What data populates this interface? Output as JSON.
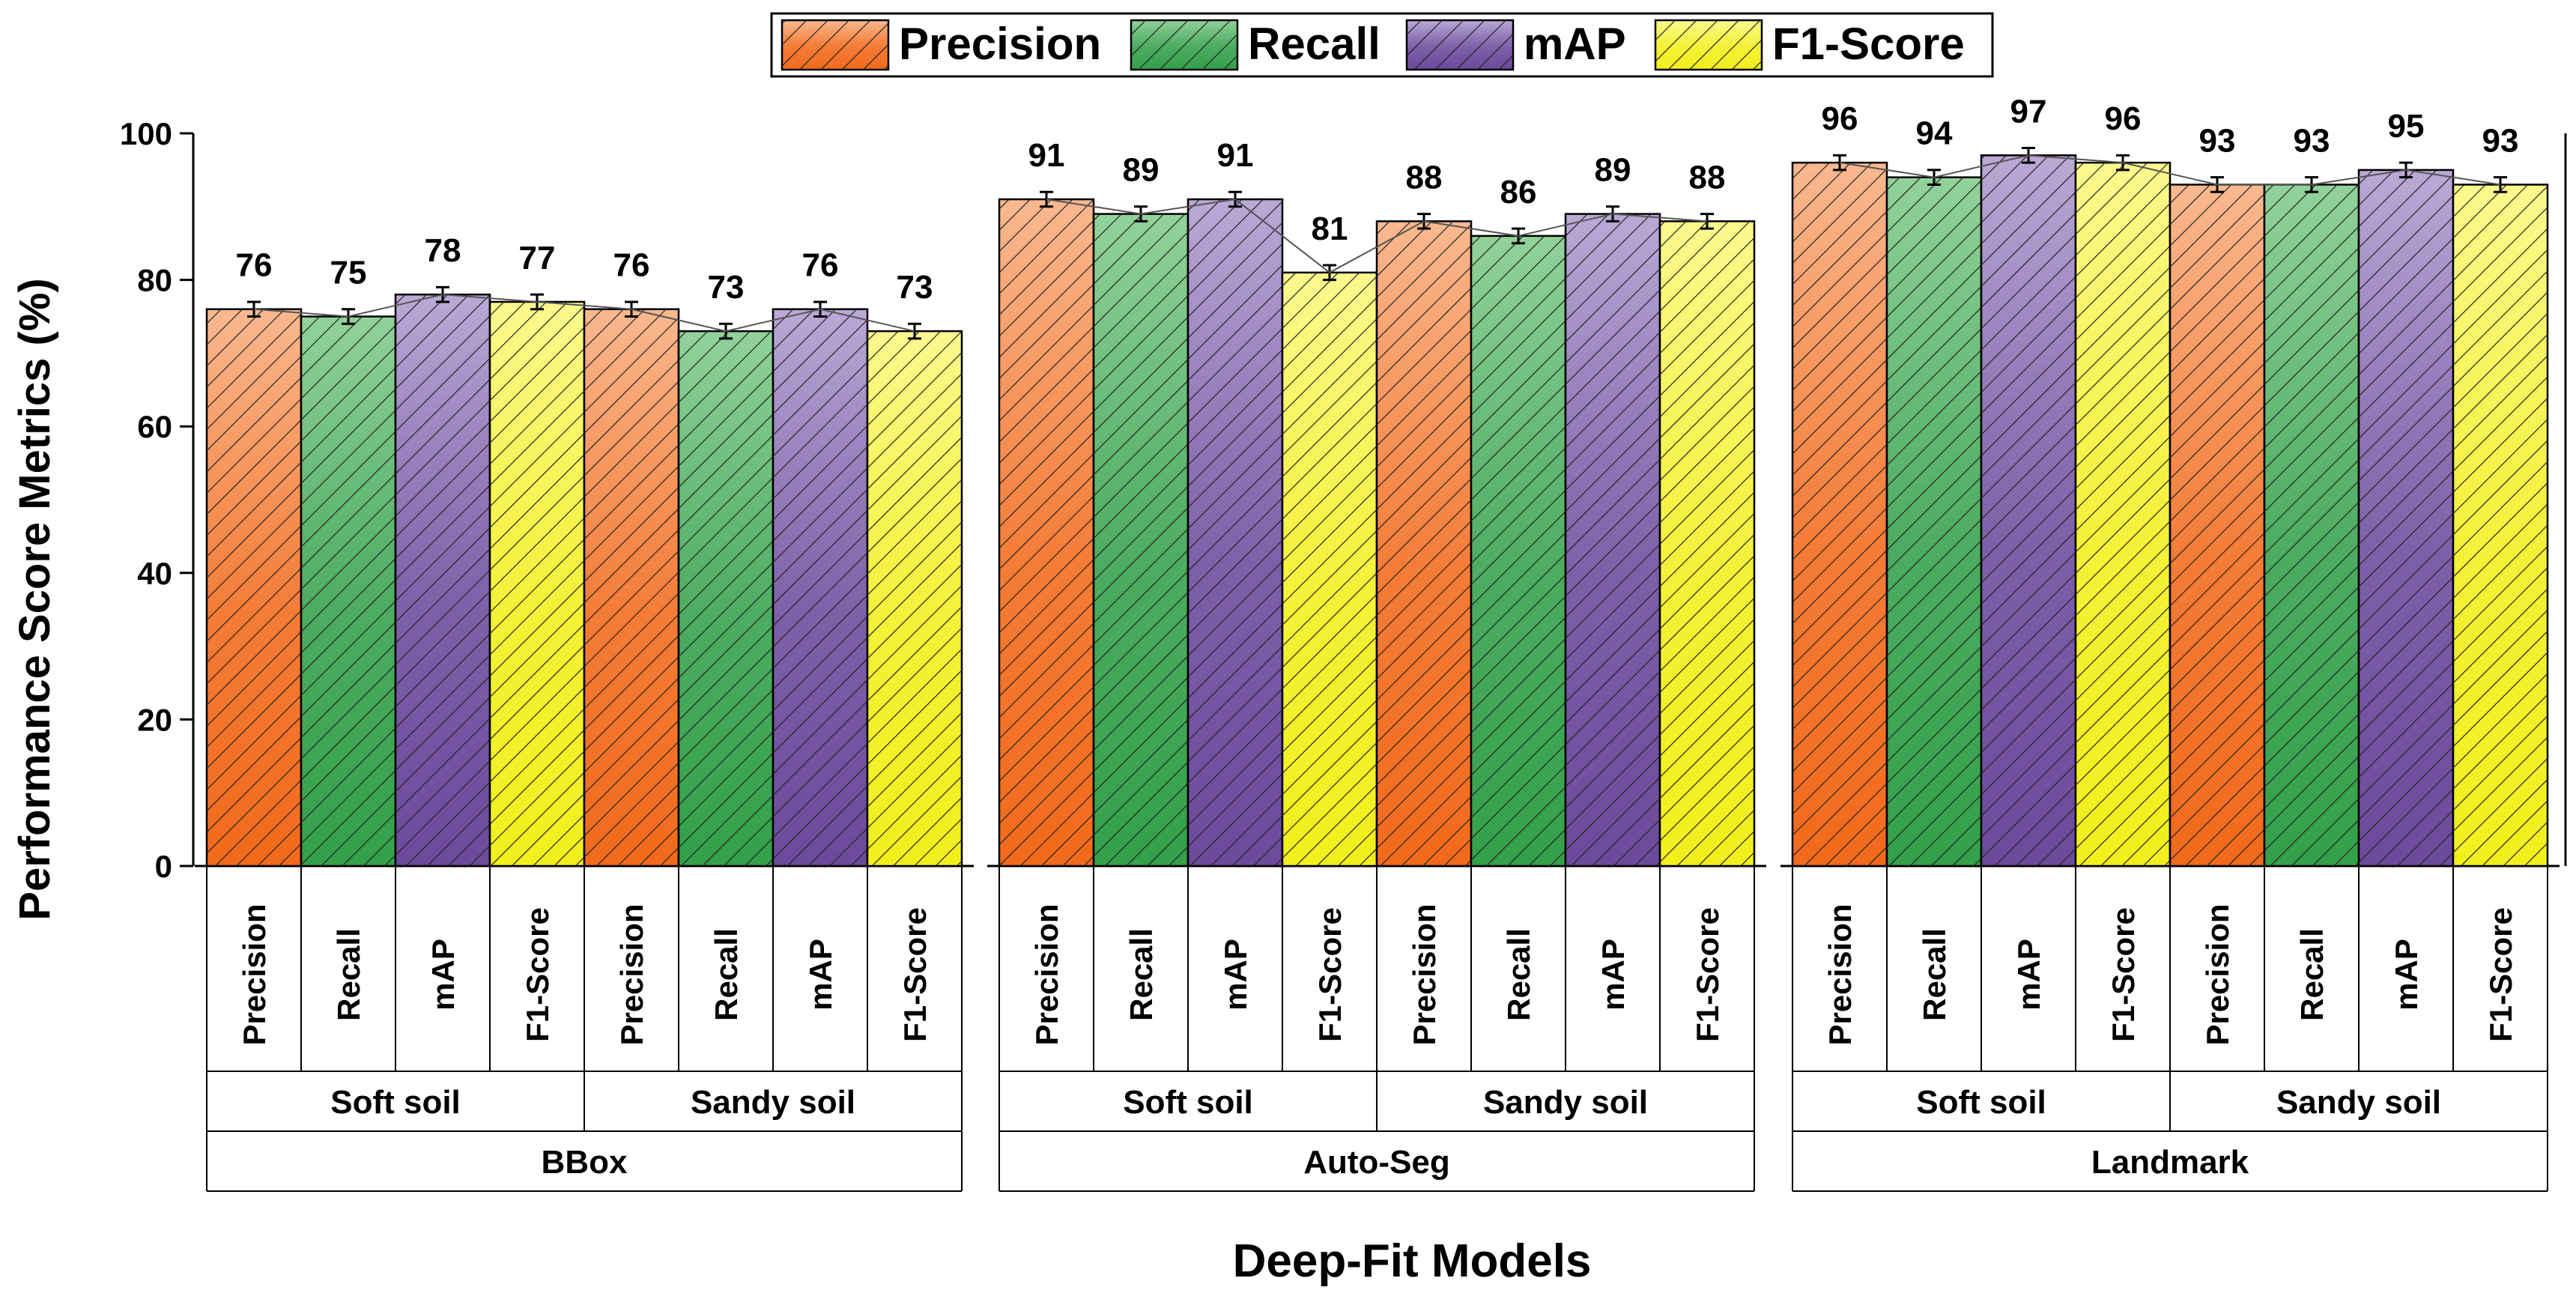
{
  "chart_data": {
    "type": "bar",
    "ylabel": "Performance Score Metrics (%)",
    "xlabel": "Deep-Fit Models",
    "ylim": [
      0,
      100
    ],
    "yticks": [
      0,
      20,
      40,
      60,
      80,
      100
    ],
    "legend_position": "top",
    "metrics": [
      "Precision",
      "Recall",
      "mAP",
      "F1-Score"
    ],
    "series": [
      {
        "name": "Precision",
        "color_dark": "#f26a1b",
        "color_light": "#f9b990"
      },
      {
        "name": "Recall",
        "color_dark": "#33a04a",
        "color_light": "#92d29b"
      },
      {
        "name": "mAP",
        "color_dark": "#6c4a9c",
        "color_light": "#bba9d6"
      },
      {
        "name": "F1-Score",
        "color_dark": "#f2ef1c",
        "color_light": "#fbf98e"
      }
    ],
    "groups": [
      {
        "model": "BBox",
        "soils": [
          {
            "soil": "Soft soil",
            "values": [
              76,
              75,
              78,
              77
            ]
          },
          {
            "soil": "Sandy soil",
            "values": [
              76,
              73,
              76,
              73
            ]
          }
        ]
      },
      {
        "model": "Auto-Seg",
        "soils": [
          {
            "soil": "Soft soil",
            "values": [
              91,
              89,
              91,
              81
            ]
          },
          {
            "soil": "Sandy soil",
            "values": [
              88,
              86,
              89,
              88
            ]
          }
        ]
      },
      {
        "model": "Landmark",
        "soils": [
          {
            "soil": "Soft soil",
            "values": [
              96,
              94,
              97,
              96
            ]
          },
          {
            "soil": "Sandy soil",
            "values": [
              93,
              93,
              95,
              93
            ]
          }
        ]
      }
    ],
    "error_bar": 1
  }
}
